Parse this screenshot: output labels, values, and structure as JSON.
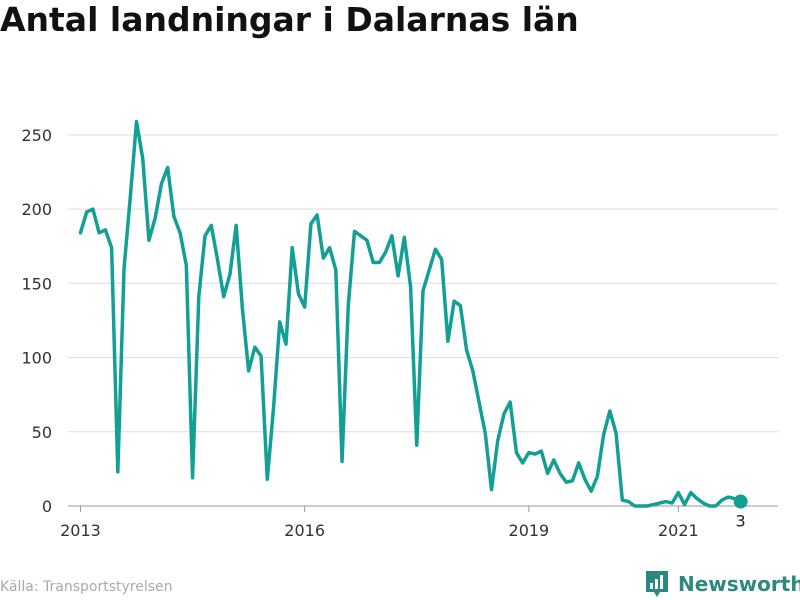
{
  "title": "Antal landningar i Dalarnas län",
  "source": "Källa: Transportstyrelsen",
  "brand": {
    "name": "Newsworthy",
    "icon": "newsworthy-logo-icon"
  },
  "colors": {
    "line": "#12a094",
    "grid": "#dddddd",
    "brand": "#2b8a80"
  },
  "chart_data": {
    "type": "line",
    "title": "Antal landningar i Dalarnas län",
    "xlabel": "",
    "ylabel": "",
    "ylim": [
      0,
      260
    ],
    "yticks": [
      0,
      50,
      100,
      150,
      200,
      250
    ],
    "x_range": [
      "2012-11",
      "2022-05"
    ],
    "xticks": [
      {
        "date": "2013-01",
        "label": "2013"
      },
      {
        "date": "2016-01",
        "label": "2016"
      },
      {
        "date": "2019-01",
        "label": "2019"
      },
      {
        "date": "2021-01",
        "label": "2021"
      }
    ],
    "grid": true,
    "series": [
      {
        "color": "#12a094",
        "points": [
          [
            "2013-01",
            184
          ],
          [
            "2013-02",
            198
          ],
          [
            "2013-03",
            200
          ],
          [
            "2013-04",
            184
          ],
          [
            "2013-05",
            186
          ],
          [
            "2013-06",
            174
          ],
          [
            "2013-07",
            23
          ],
          [
            "2013-08",
            160
          ],
          [
            "2013-09",
            208
          ],
          [
            "2013-10",
            259
          ],
          [
            "2013-11",
            234
          ],
          [
            "2013-12",
            179
          ],
          [
            "2014-01",
            194
          ],
          [
            "2014-02",
            217
          ],
          [
            "2014-03",
            228
          ],
          [
            "2014-04",
            195
          ],
          [
            "2014-05",
            184
          ],
          [
            "2014-06",
            162
          ],
          [
            "2014-07",
            19
          ],
          [
            "2014-08",
            141
          ],
          [
            "2014-09",
            182
          ],
          [
            "2014-10",
            189
          ],
          [
            "2014-11",
            166
          ],
          [
            "2014-12",
            141
          ],
          [
            "2015-01",
            156
          ],
          [
            "2015-02",
            189
          ],
          [
            "2015-03",
            133
          ],
          [
            "2015-04",
            91
          ],
          [
            "2015-05",
            107
          ],
          [
            "2015-06",
            101
          ],
          [
            "2015-07",
            18
          ],
          [
            "2015-08",
            66
          ],
          [
            "2015-09",
            124
          ],
          [
            "2015-10",
            109
          ],
          [
            "2015-11",
            174
          ],
          [
            "2015-12",
            143
          ],
          [
            "2016-01",
            134
          ],
          [
            "2016-02",
            190
          ],
          [
            "2016-03",
            196
          ],
          [
            "2016-04",
            167
          ],
          [
            "2016-05",
            174
          ],
          [
            "2016-06",
            159
          ],
          [
            "2016-07",
            30
          ],
          [
            "2016-08",
            135
          ],
          [
            "2016-09",
            185
          ],
          [
            "2016-10",
            182
          ],
          [
            "2016-11",
            179
          ],
          [
            "2016-12",
            164
          ],
          [
            "2017-01",
            164
          ],
          [
            "2017-02",
            171
          ],
          [
            "2017-03",
            182
          ],
          [
            "2017-04",
            155
          ],
          [
            "2017-05",
            181
          ],
          [
            "2017-06",
            148
          ],
          [
            "2017-07",
            41
          ],
          [
            "2017-08",
            145
          ],
          [
            "2017-09",
            159
          ],
          [
            "2017-10",
            173
          ],
          [
            "2017-11",
            166
          ],
          [
            "2017-12",
            111
          ],
          [
            "2018-01",
            138
          ],
          [
            "2018-02",
            135
          ],
          [
            "2018-03",
            105
          ],
          [
            "2018-04",
            91
          ],
          [
            "2018-05",
            70
          ],
          [
            "2018-06",
            49
          ],
          [
            "2018-07",
            11
          ],
          [
            "2018-08",
            44
          ],
          [
            "2018-09",
            62
          ],
          [
            "2018-10",
            70
          ],
          [
            "2018-11",
            36
          ],
          [
            "2018-12",
            29
          ],
          [
            "2019-01",
            36
          ],
          [
            "2019-02",
            35
          ],
          [
            "2019-03",
            37
          ],
          [
            "2019-04",
            22
          ],
          [
            "2019-05",
            31
          ],
          [
            "2019-06",
            22
          ],
          [
            "2019-07",
            16
          ],
          [
            "2019-08",
            17
          ],
          [
            "2019-09",
            29
          ],
          [
            "2019-10",
            18
          ],
          [
            "2019-11",
            10
          ],
          [
            "2019-12",
            20
          ],
          [
            "2020-01",
            48
          ],
          [
            "2020-02",
            64
          ],
          [
            "2020-03",
            49
          ],
          [
            "2020-04",
            4
          ],
          [
            "2020-05",
            3
          ],
          [
            "2020-06",
            0
          ],
          [
            "2020-07",
            0
          ],
          [
            "2020-08",
            0
          ],
          [
            "2020-09",
            1
          ],
          [
            "2020-10",
            2
          ],
          [
            "2020-11",
            3
          ],
          [
            "2020-12",
            2
          ],
          [
            "2021-01",
            9
          ],
          [
            "2021-02",
            1
          ],
          [
            "2021-03",
            9
          ],
          [
            "2021-04",
            5
          ],
          [
            "2021-05",
            2
          ],
          [
            "2021-06",
            0
          ],
          [
            "2021-07",
            0
          ],
          [
            "2021-08",
            4
          ],
          [
            "2021-09",
            6
          ],
          [
            "2021-10",
            5
          ],
          [
            "2021-11",
            3
          ]
        ]
      }
    ],
    "last_point_label": "3"
  }
}
